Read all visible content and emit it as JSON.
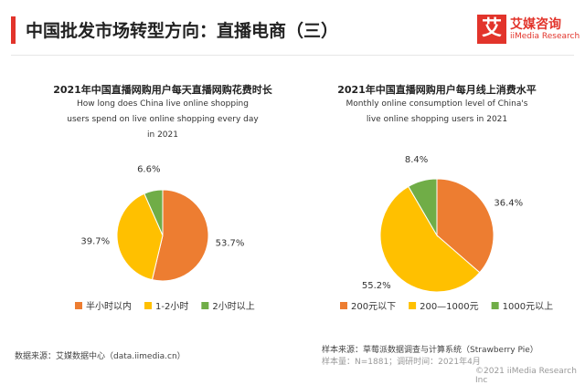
{
  "header": {
    "title": "中国批发市场转型方向：直播电商（三）",
    "logo_icon": "艾",
    "logo_name": "艾媒咨询",
    "logo_sub": "iiMedia Research"
  },
  "chart_data": [
    {
      "type": "pie",
      "title": "2021年中国直播网购用户每天直播网购花费时长",
      "subtitle": "How long does China live online shopping users spend on live online shopping every day in 2021",
      "categories": [
        "半小时以内",
        "1-2小时",
        "2小时以上"
      ],
      "values": [
        53.7,
        39.7,
        6.6
      ],
      "value_labels": [
        "53.7%",
        "39.7%",
        "6.6%"
      ],
      "colors": [
        "#ed7d31",
        "#ffc000",
        "#70ad47"
      ]
    },
    {
      "type": "pie",
      "title": "2021年中国直播网购用户每月线上消费水平",
      "subtitle": "Monthly online consumption level of China's live online shopping users in 2021",
      "categories": [
        "200元以下",
        "200—1000元",
        "1000元以上"
      ],
      "values": [
        36.4,
        55.2,
        8.4
      ],
      "value_labels": [
        "36.4%",
        "55.2%",
        "8.4%"
      ],
      "colors": [
        "#ed7d31",
        "#ffc000",
        "#70ad47"
      ]
    }
  ],
  "footer": {
    "source": "数据来源：艾媒数据中心（data.iimedia.cn）",
    "sample": "样本来源：草莓派数据调查与计算系统（Strawberry Pie）",
    "sample_size": "样本量：N=1881；调研时间：2021年4月",
    "copyright": "©2021  iiMedia Research  Inc"
  }
}
